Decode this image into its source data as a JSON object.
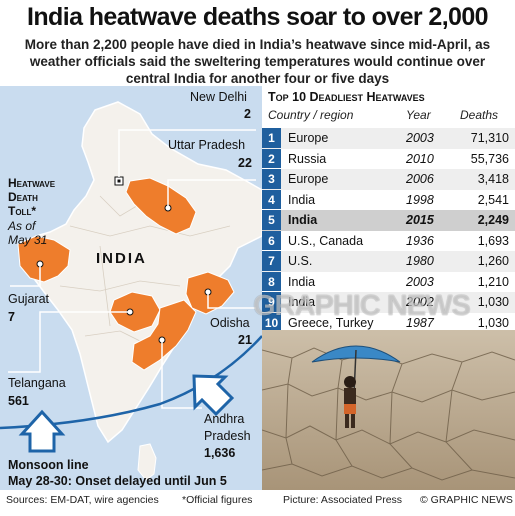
{
  "title": "India heatwave deaths soar to over 2,000",
  "subtitle": "More than 2,200 people have died in India’s heatwave since mid-April, as weather officials said the sweltering temperatures would continue over central India for another four or five days",
  "map": {
    "toll_title_l1": "Heatwave",
    "toll_title_l2": "Death",
    "toll_title_l3": "Toll*",
    "as_of_l1": "As of",
    "as_of_l2": "May 31",
    "country_label": "INDIA",
    "states": [
      {
        "name": "New Delhi",
        "deaths": "2"
      },
      {
        "name": "Uttar Pradesh",
        "deaths": "22"
      },
      {
        "name": "Gujarat",
        "deaths": "7"
      },
      {
        "name": "Odisha",
        "deaths": "21"
      },
      {
        "name": "Telangana",
        "deaths": "561"
      },
      {
        "name": "Andhra",
        "name_l2": "Pradesh",
        "deaths": "1,636"
      }
    ],
    "monsoon_title": "Monsoon line",
    "monsoon_note": "May 28-30: Onset delayed until Jun 5",
    "colors": {
      "sea": "#c9dcef",
      "land": "#f4f1ec",
      "affected": "#ee7d2c",
      "arrow": "#1e64a8"
    }
  },
  "table": {
    "title": "Top 10 Deadliest Heatwaves",
    "headers": {
      "country": "Country / region",
      "year": "Year",
      "deaths": "Deaths"
    },
    "highlight_rank": 5,
    "rows": [
      {
        "rank": "1",
        "country": "Europe",
        "year": "2003",
        "deaths": "71,310"
      },
      {
        "rank": "2",
        "country": "Russia",
        "year": "2010",
        "deaths": "55,736"
      },
      {
        "rank": "3",
        "country": "Europe",
        "year": "2006",
        "deaths": "3,418"
      },
      {
        "rank": "4",
        "country": "India",
        "year": "1998",
        "deaths": "2,541"
      },
      {
        "rank": "5",
        "country": "India",
        "year": "2015",
        "deaths": "2,249"
      },
      {
        "rank": "6",
        "country": "U.S., Canada",
        "year": "1936",
        "deaths": "1,693"
      },
      {
        "rank": "7",
        "country": "U.S.",
        "year": "1980",
        "deaths": "1,260"
      },
      {
        "rank": "8",
        "country": "India",
        "year": "2003",
        "deaths": "1,210"
      },
      {
        "rank": "9",
        "country": "India",
        "year": "2002",
        "deaths": "1,030"
      },
      {
        "rank": "10",
        "country": "Greece, Turkey",
        "year": "1987",
        "deaths": "1,030"
      }
    ],
    "colors": {
      "rank_box": "#1f5f9e",
      "row_a": "#eeeeee",
      "row_b": "#ffffff",
      "row_hl": "#cfcfcf"
    }
  },
  "watermark": "GRAPHIC NEWS",
  "footer": {
    "sources": "Sources: EM-DAT, wire agencies",
    "note": "*Official figures",
    "picture": "Picture: Associated Press",
    "credit": "© GRAPHIC NEWS"
  }
}
